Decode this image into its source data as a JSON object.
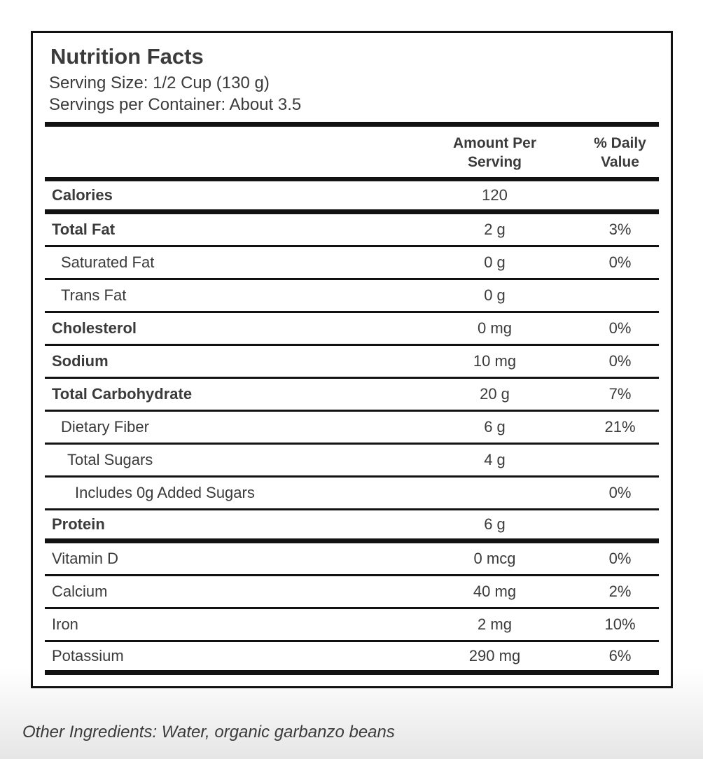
{
  "label": {
    "title": "Nutrition Facts",
    "serving_size": "Serving Size: 1/2 Cup (130 g)",
    "servings_per_container": "Servings per Container: About 3.5"
  },
  "table": {
    "header": {
      "amount": "Amount Per Serving",
      "daily": "% Daily Value"
    },
    "rows": [
      {
        "label": "Calories",
        "amount": "120",
        "daily": "",
        "style": "bold",
        "divider": "thick"
      },
      {
        "label": "Total Fat",
        "amount": "2 g",
        "daily": "3%",
        "style": "bold",
        "divider": "thin"
      },
      {
        "label": "Saturated Fat",
        "amount": "0 g",
        "daily": "0%",
        "style": "indent1",
        "divider": "thin"
      },
      {
        "label": "Trans Fat",
        "amount": "0 g",
        "daily": "",
        "style": "indent1",
        "divider": "thin"
      },
      {
        "label": "Cholesterol",
        "amount": "0 mg",
        "daily": "0%",
        "style": "bold",
        "divider": "thin"
      },
      {
        "label": "Sodium",
        "amount": "10 mg",
        "daily": "0%",
        "style": "bold",
        "divider": "thin"
      },
      {
        "label": "Total Carbohydrate",
        "amount": "20 g",
        "daily": "7%",
        "style": "bold",
        "divider": "thin"
      },
      {
        "label": "Dietary Fiber",
        "amount": "6 g",
        "daily": "21%",
        "style": "indent1",
        "divider": "thin"
      },
      {
        "label": "Total Sugars",
        "amount": "4 g",
        "daily": "",
        "style": "indent2",
        "divider": "thin"
      },
      {
        "label": "Includes 0g Added Sugars",
        "amount": "",
        "daily": "0%",
        "style": "indent3",
        "divider": "thin"
      },
      {
        "label": "Protein",
        "amount": "6 g",
        "daily": "",
        "style": "bold",
        "divider": "thick"
      },
      {
        "label": "Vitamin D",
        "amount": "0 mcg",
        "daily": "0%",
        "style": "plain",
        "divider": "thin"
      },
      {
        "label": "Calcium",
        "amount": "40 mg",
        "daily": "2%",
        "style": "plain",
        "divider": "thin"
      },
      {
        "label": "Iron",
        "amount": "2 mg",
        "daily": "10%",
        "style": "plain",
        "divider": "thin"
      },
      {
        "label": "Potassium",
        "amount": "290 mg",
        "daily": "6%",
        "style": "plain",
        "divider": "thick"
      }
    ]
  },
  "footer": {
    "other_ingredients": "Other Ingredients: Water, organic garbanzo beans"
  },
  "colors": {
    "text": "#3b3b3b",
    "rule": "#121212",
    "page_bottom": "#e6e6e6"
  }
}
